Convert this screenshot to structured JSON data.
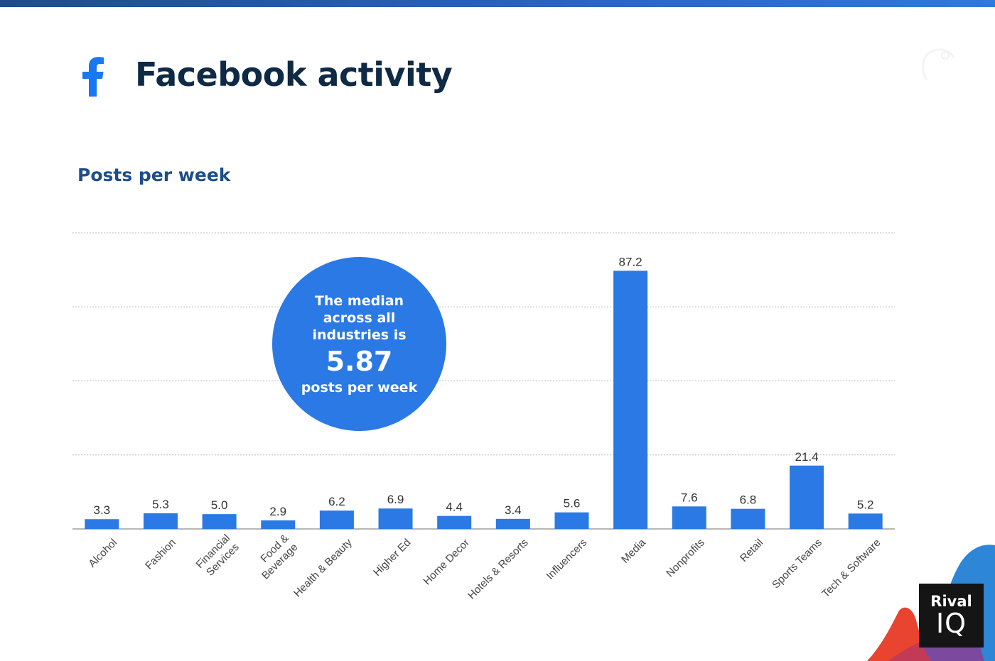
{
  "header": {
    "title": "Facebook activity",
    "logo_icon": "facebook-f-icon"
  },
  "section": {
    "subtitle": "Posts per week"
  },
  "callout": {
    "line1": "The median across all industries is",
    "value": "5.87",
    "unit": "posts per week"
  },
  "brand": {
    "line1": "Rival",
    "line2": "IQ"
  },
  "colors": {
    "bar": "#2b79e4",
    "title": "#0f2a44",
    "subtitle": "#1d4e8a",
    "facebook": "#1877f2",
    "callout": "#2b79e4"
  },
  "chart_data": {
    "type": "bar",
    "title": "Posts per week",
    "xlabel": "",
    "ylabel": "",
    "ylim": [
      0,
      100
    ],
    "grid": true,
    "categories": [
      "Alcohol",
      "Fashion",
      "Financial Services",
      "Food & Beverage",
      "Health & Beauty",
      "Higher Ed",
      "Home Decor",
      "Hotels & Resorts",
      "Influencers",
      "Media",
      "Nonprofits",
      "Retail",
      "Sports Teams",
      "Tech & Software"
    ],
    "category_lines": [
      [
        "Alcohol"
      ],
      [
        "Fashion"
      ],
      [
        "Financial",
        "Services"
      ],
      [
        "Food &",
        "Beverage"
      ],
      [
        "Health & Beauty"
      ],
      [
        "Higher Ed"
      ],
      [
        "Home Decor"
      ],
      [
        "Hotels & Resorts"
      ],
      [
        "Influencers"
      ],
      [
        "Media"
      ],
      [
        "Nonprofits"
      ],
      [
        "Retail"
      ],
      [
        "Sports Teams"
      ],
      [
        "Tech & Software"
      ]
    ],
    "values": [
      3.3,
      5.3,
      5.0,
      2.9,
      6.2,
      6.9,
      4.4,
      3.4,
      5.6,
      87.2,
      7.6,
      6.8,
      21.4,
      5.2
    ],
    "value_labels": [
      "3.3",
      "5.3",
      "5.0",
      "2.9",
      "6.2",
      "6.9",
      "4.4",
      "3.4",
      "5.6",
      "87.2",
      "7.6",
      "6.8",
      "21.4",
      "5.2"
    ]
  }
}
